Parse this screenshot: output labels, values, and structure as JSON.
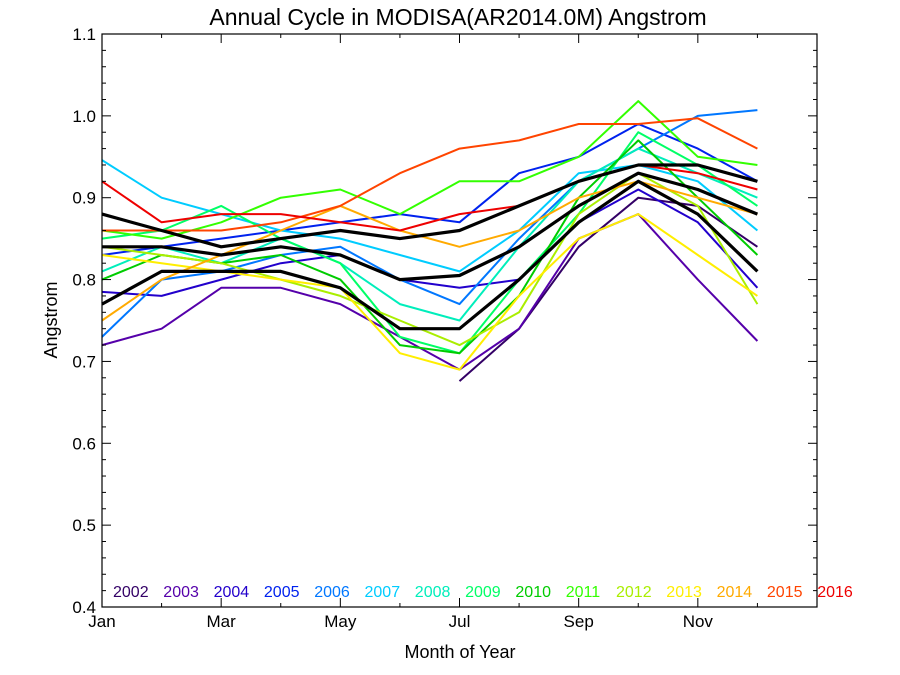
{
  "chart_data": {
    "type": "line",
    "title": "Annual Cycle in MODISA(AR2014.0M) Angstrom",
    "xlabel": "Month of Year",
    "ylabel": "Angstrom",
    "x": [
      1,
      2,
      3,
      4,
      5,
      6,
      7,
      8,
      9,
      10,
      11,
      12
    ],
    "xlim": [
      1,
      13
    ],
    "ylim": [
      0.4,
      1.1
    ],
    "x_ticks": [
      {
        "value": 1,
        "label": "Jan"
      },
      {
        "value": 3,
        "label": "Mar"
      },
      {
        "value": 5,
        "label": "May"
      },
      {
        "value": 7,
        "label": "Jul"
      },
      {
        "value": 9,
        "label": "Sep"
      },
      {
        "value": 11,
        "label": "Nov"
      }
    ],
    "y_ticks": [
      {
        "value": 0.4,
        "label": "0.4"
      },
      {
        "value": 0.5,
        "label": "0.5"
      },
      {
        "value": 0.6,
        "label": "0.6"
      },
      {
        "value": 0.7,
        "label": "0.7"
      },
      {
        "value": 0.8,
        "label": "0.8"
      },
      {
        "value": 0.9,
        "label": "0.9"
      },
      {
        "value": 1.0,
        "label": "1.0"
      },
      {
        "value": 1.1,
        "label": "1.1"
      }
    ],
    "grid": false,
    "legend_position": "bottom",
    "series": [
      {
        "name": "2002",
        "color": "#330066",
        "values": [
          null,
          null,
          null,
          null,
          null,
          null,
          0.676,
          0.74,
          0.84,
          0.9,
          0.89,
          0.84
        ]
      },
      {
        "name": "2003",
        "color": "#5500aa",
        "values": [
          0.72,
          0.74,
          0.79,
          0.79,
          0.77,
          0.73,
          0.69,
          0.74,
          0.85,
          0.88,
          0.8,
          0.725
        ]
      },
      {
        "name": "2004",
        "color": "#2200cc",
        "values": [
          0.785,
          0.78,
          0.8,
          0.82,
          0.83,
          0.8,
          0.79,
          0.8,
          0.87,
          0.91,
          0.87,
          0.79
        ]
      },
      {
        "name": "2005",
        "color": "#0022ee",
        "values": [
          0.83,
          0.84,
          0.85,
          0.86,
          0.87,
          0.88,
          0.87,
          0.93,
          0.95,
          0.99,
          0.96,
          0.92
        ]
      },
      {
        "name": "2006",
        "color": "#0077ff",
        "values": [
          0.73,
          0.8,
          0.81,
          0.83,
          0.84,
          0.8,
          0.77,
          0.85,
          0.92,
          0.96,
          1.0,
          1.007
        ]
      },
      {
        "name": "2007",
        "color": "#00ccff",
        "values": [
          0.946,
          0.9,
          0.88,
          0.86,
          0.85,
          0.83,
          0.81,
          0.86,
          0.93,
          0.94,
          0.92,
          0.86
        ]
      },
      {
        "name": "2008",
        "color": "#00eebb",
        "values": [
          0.81,
          0.84,
          0.82,
          0.85,
          0.82,
          0.77,
          0.75,
          0.84,
          0.92,
          0.96,
          0.93,
          0.9
        ]
      },
      {
        "name": "2009",
        "color": "#00ff66",
        "values": [
          0.85,
          0.86,
          0.89,
          0.85,
          0.82,
          0.73,
          0.71,
          0.8,
          0.88,
          0.98,
          0.94,
          0.89
        ]
      },
      {
        "name": "2010",
        "color": "#00cc00",
        "values": [
          0.8,
          0.83,
          0.82,
          0.83,
          0.8,
          0.72,
          0.71,
          0.78,
          0.9,
          0.97,
          0.9,
          0.83
        ]
      },
      {
        "name": "2011",
        "color": "#33ff00",
        "values": [
          0.86,
          0.85,
          0.87,
          0.9,
          0.91,
          0.88,
          0.92,
          0.92,
          0.95,
          1.018,
          0.95,
          0.94
        ]
      },
      {
        "name": "2012",
        "color": "#aaee00",
        "values": [
          0.84,
          0.83,
          0.82,
          0.8,
          0.78,
          0.75,
          0.72,
          0.76,
          0.88,
          0.93,
          0.89,
          0.77
        ]
      },
      {
        "name": "2013",
        "color": "#ffee00",
        "values": [
          0.83,
          0.82,
          0.81,
          0.8,
          0.79,
          0.71,
          0.69,
          0.78,
          0.85,
          0.88,
          0.83,
          0.78
        ]
      },
      {
        "name": "2014",
        "color": "#ffaa00",
        "values": [
          0.75,
          0.8,
          0.83,
          0.86,
          0.89,
          0.86,
          0.84,
          0.86,
          0.9,
          0.92,
          0.9,
          0.88
        ]
      },
      {
        "name": "2015",
        "color": "#ff4400",
        "values": [
          0.86,
          0.86,
          0.86,
          0.87,
          0.89,
          0.93,
          0.96,
          0.97,
          0.99,
          0.99,
          0.997,
          0.96
        ]
      },
      {
        "name": "2016",
        "color": "#ee0000",
        "values": [
          0.92,
          0.87,
          0.88,
          0.88,
          0.87,
          0.86,
          0.88,
          0.89,
          0.92,
          0.94,
          0.93,
          0.91
        ]
      }
    ],
    "extra_lines": [
      {
        "color": "#000000",
        "values": [
          0.88,
          0.86,
          0.84,
          0.85,
          0.86,
          0.85,
          0.86,
          0.89,
          0.92,
          0.94,
          0.94,
          0.92
        ]
      },
      {
        "color": "#000000",
        "values": [
          0.84,
          0.84,
          0.83,
          0.84,
          0.83,
          0.8,
          0.805,
          0.84,
          0.89,
          0.93,
          0.91,
          0.88
        ]
      },
      {
        "color": "#000000",
        "values": [
          0.77,
          0.81,
          0.81,
          0.81,
          0.79,
          0.74,
          0.74,
          0.8,
          0.87,
          0.92,
          0.88,
          0.81
        ]
      }
    ]
  }
}
